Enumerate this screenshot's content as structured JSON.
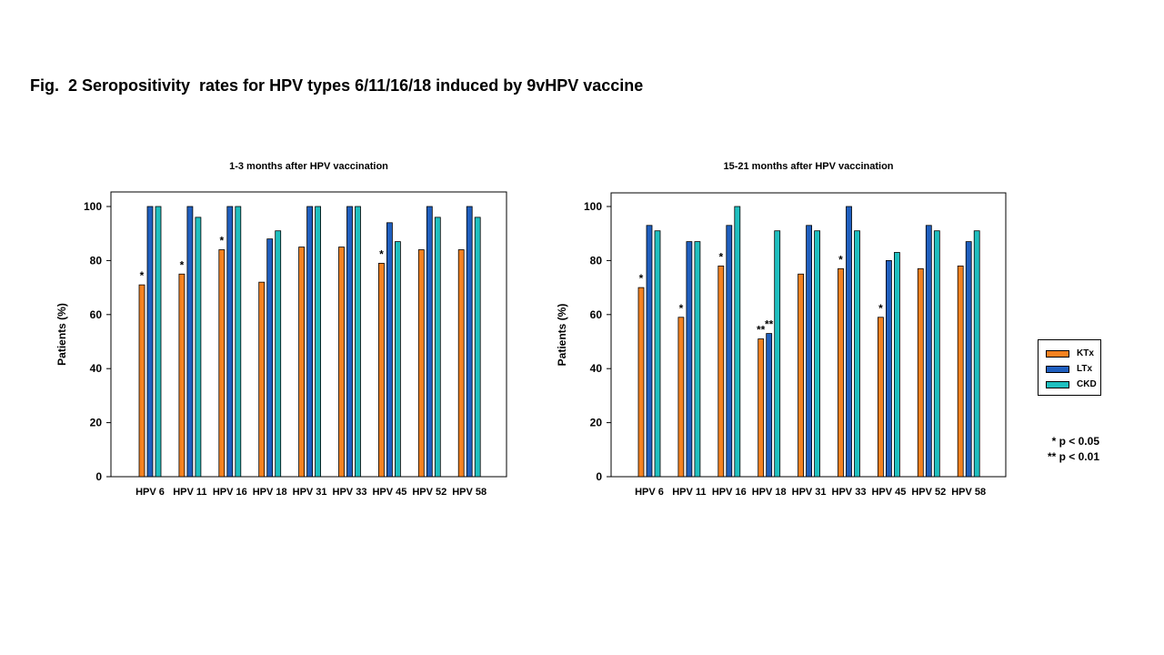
{
  "figure_title": "Fig.  2 Seropositivity  rates for HPV types 6/11/16/18 induced by 9vHPV vaccine",
  "colors": {
    "KTx": "#F58220",
    "LTx": "#1F5FBF",
    "CKD": "#1FBFBF"
  },
  "legend": {
    "placement": "right",
    "items": [
      {
        "label": "KTx",
        "color": "#F58220"
      },
      {
        "label": "LTx",
        "color": "#1F5FBF"
      },
      {
        "label": "CKD",
        "color": "#1FBFBF"
      }
    ]
  },
  "significance_notes": [
    "* p < 0.05",
    "** p < 0.01"
  ],
  "chart_data": [
    {
      "type": "bar",
      "title": "1-3 months after HPV vaccination",
      "xlabel": "",
      "ylabel": "Patients (%)",
      "ylim": [
        0,
        100
      ],
      "yticks": [
        0,
        20,
        40,
        60,
        80,
        100
      ],
      "grid": false,
      "categories": [
        "HPV 6",
        "HPV 11",
        "HPV 16",
        "HPV 18",
        "HPV 31",
        "HPV 33",
        "HPV 45",
        "HPV 52",
        "HPV 58"
      ],
      "series": [
        {
          "name": "KTx",
          "values": [
            71,
            75,
            84,
            72,
            85,
            85,
            79,
            84,
            84
          ],
          "marks": [
            "*",
            "*",
            "*",
            "",
            "",
            "",
            "*",
            "",
            ""
          ]
        },
        {
          "name": "LTx",
          "values": [
            100,
            100,
            100,
            88,
            100,
            100,
            94,
            100,
            100
          ],
          "marks": [
            "",
            "",
            "",
            "",
            "",
            "",
            "",
            "",
            ""
          ]
        },
        {
          "name": "CKD",
          "values": [
            100,
            96,
            100,
            91,
            100,
            100,
            87,
            96,
            96
          ],
          "marks": [
            "",
            "",
            "",
            "",
            "",
            "",
            "",
            "",
            ""
          ]
        }
      ]
    },
    {
      "type": "bar",
      "title": "15-21 months after HPV vaccination",
      "xlabel": "",
      "ylabel": "Patients (%)",
      "ylim": [
        0,
        100
      ],
      "yticks": [
        0,
        20,
        40,
        60,
        80,
        100
      ],
      "grid": false,
      "categories": [
        "HPV 6",
        "HPV 11",
        "HPV 16",
        "HPV 18",
        "HPV 31",
        "HPV 33",
        "HPV 45",
        "HPV 52",
        "HPV 58"
      ],
      "series": [
        {
          "name": "KTx",
          "values": [
            70,
            59,
            78,
            51,
            75,
            77,
            59,
            77,
            78
          ],
          "marks": [
            "*",
            "*",
            "*",
            "**",
            "",
            "*",
            "*",
            "",
            ""
          ]
        },
        {
          "name": "LTx",
          "values": [
            93,
            87,
            93,
            53,
            93,
            100,
            80,
            93,
            87
          ],
          "marks": [
            "",
            "",
            "",
            "**",
            "",
            "",
            "",
            "",
            ""
          ]
        },
        {
          "name": "CKD",
          "values": [
            91,
            87,
            100,
            91,
            91,
            91,
            83,
            91,
            91
          ],
          "marks": [
            "",
            "",
            "",
            "",
            "",
            "",
            "",
            "",
            ""
          ]
        }
      ]
    }
  ]
}
